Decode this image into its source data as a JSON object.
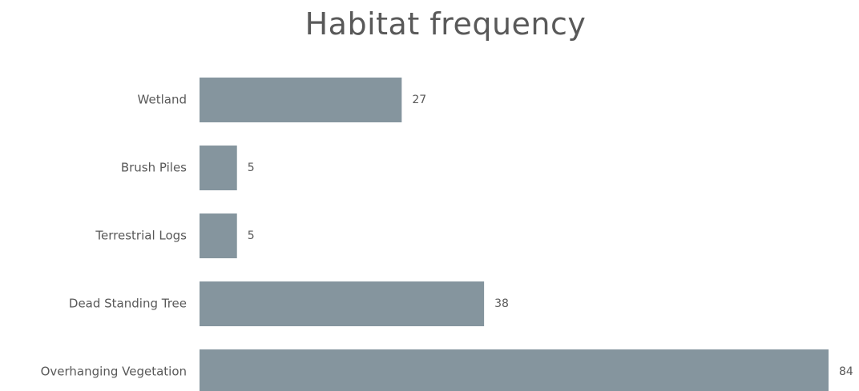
{
  "chart_data": {
    "type": "bar",
    "orientation": "horizontal",
    "title": "Habitat frequency",
    "categories": [
      "Wetland",
      "Brush Piles",
      "Terrestrial Logs",
      "Dead Standing Tree",
      "Overhanging Vegetation"
    ],
    "values": [
      27,
      5,
      5,
      38,
      84
    ],
    "xlim": [
      0,
      84
    ],
    "grid": false,
    "legend": "none",
    "data_labels": true,
    "colors": {
      "bar": "#85959e",
      "text": "#595959",
      "background": "#ffffff"
    }
  }
}
